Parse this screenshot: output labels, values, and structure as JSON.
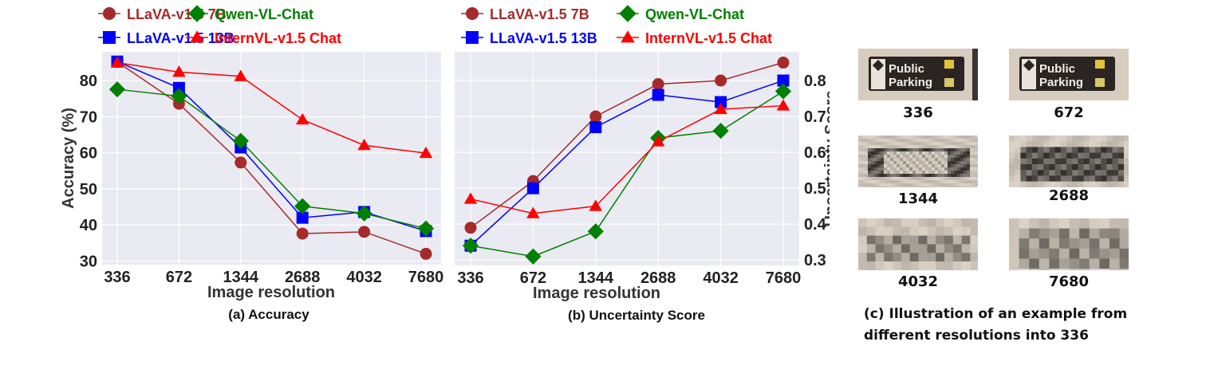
{
  "chart_data": [
    {
      "type": "line",
      "caption": "(a) Accuracy",
      "xlabel": "Image resolution",
      "ylabel": "Accuracy (%)",
      "categories": [
        "336",
        "672",
        "1344",
        "2688",
        "4032",
        "7680"
      ],
      "yticks": [
        30,
        40,
        50,
        60,
        70,
        80
      ],
      "ylim": [
        29,
        88
      ],
      "y_axis_side": "left",
      "grid": true,
      "legend_placement": "top",
      "series": [
        {
          "name": "LLaVA-v1.5 7B",
          "color": "#a52a2a",
          "marker": "circle",
          "values": [
            85.2,
            73.6,
            57.3,
            37.6,
            38.1,
            32.0
          ]
        },
        {
          "name": "LLaVA-v1.5 13B",
          "color": "#0000ff",
          "marker": "square",
          "values": [
            85.3,
            78.0,
            61.5,
            42.0,
            43.6,
            38.3
          ]
        },
        {
          "name": "Qwen-VL-Chat",
          "color": "#008000",
          "marker": "diamond",
          "values": [
            77.6,
            75.7,
            63.3,
            45.2,
            43.2,
            39.0
          ]
        },
        {
          "name": "InternVL-v1.5 Chat",
          "color": "#ff0000",
          "marker": "triangle",
          "values": [
            85.0,
            82.4,
            81.2,
            69.2,
            62.1,
            59.9
          ]
        }
      ]
    },
    {
      "type": "line",
      "caption": "(b) Uncertainty Score",
      "xlabel": "Image resolution",
      "ylabel": "Uncertainty Score",
      "categories": [
        "336",
        "672",
        "1344",
        "2688",
        "4032",
        "7680"
      ],
      "yticks": [
        0.3,
        0.4,
        0.5,
        0.6,
        0.7,
        0.8
      ],
      "ylim": [
        0.285,
        0.88
      ],
      "y_axis_side": "right",
      "grid": true,
      "legend_placement": "top",
      "series": [
        {
          "name": "LLaVA-v1.5 7B",
          "color": "#a52a2a",
          "marker": "circle",
          "values": [
            0.39,
            0.52,
            0.7,
            0.79,
            0.8,
            0.85
          ]
        },
        {
          "name": "LLaVA-v1.5 13B",
          "color": "#0000ff",
          "marker": "square",
          "values": [
            0.34,
            0.5,
            0.67,
            0.76,
            0.74,
            0.8
          ]
        },
        {
          "name": "Qwen-VL-Chat",
          "color": "#008000",
          "marker": "diamond",
          "values": [
            0.34,
            0.31,
            0.38,
            0.64,
            0.66,
            0.77
          ]
        },
        {
          "name": "InternVL-v1.5 Chat",
          "color": "#ff0000",
          "marker": "triangle",
          "values": [
            0.47,
            0.43,
            0.45,
            0.63,
            0.72,
            0.73
          ]
        }
      ]
    }
  ],
  "panel_c": {
    "caption_line1": "(c) Illustration of an example from",
    "caption_line2": "different resolutions into 336",
    "sign_text_line1": "Public",
    "sign_text_line2": "Parking",
    "images": [
      {
        "label": "336",
        "pixelation": 1
      },
      {
        "label": "672",
        "pixelation": 2
      },
      {
        "label": "1344",
        "pixelation": 4
      },
      {
        "label": "2688",
        "pixelation": 8
      },
      {
        "label": "4032",
        "pixelation": 12
      },
      {
        "label": "7680",
        "pixelation": 14
      }
    ]
  }
}
